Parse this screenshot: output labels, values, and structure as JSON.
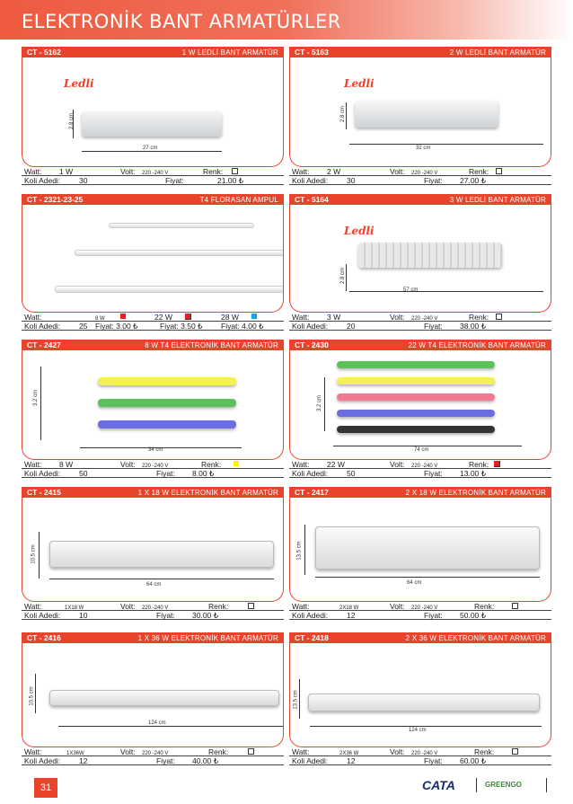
{
  "page_title": "ELEKTRONİK BANT ARMATÜRLER",
  "page_number": "31",
  "brands": [
    "CATA",
    "GREENGO"
  ],
  "labels": {
    "watt": "Watt:",
    "volt": "Volt:",
    "renk": "Renk:",
    "koli": "Koli Adedi:",
    "fiyat": "Fiyat:",
    "ledli": "Ledli"
  },
  "cards": [
    {
      "code": "CT - 5162",
      "spec": "1 W LEDLİ BANT ARMATÜR",
      "watt": "1 W",
      "volt": "220 -240 V",
      "koli": "30",
      "fiyat": "21.00 ₺",
      "dim_w": "27 cm",
      "dim_h": "2.8 cm"
    },
    {
      "code": "CT - 5163",
      "spec": "2 W LEDLİ BANT ARMATÜR",
      "watt": "2 W",
      "volt": "220 -240 V",
      "koli": "30",
      "fiyat": "27.00 ₺",
      "dim_w": "32 cm",
      "dim_h": "2.8 cm"
    },
    {
      "code": "CT - 2321-23-25",
      "spec": "T4 FLORASAN AMPUL",
      "watt1": "8 W",
      "watt2": "22 W",
      "watt3": "28 W",
      "koli": "25",
      "fiyat1": "Fiyat: 3.00 ₺",
      "fiyat2": "Fiyat: 3.50 ₺",
      "fiyat3": "Fiyat: 4.00 ₺"
    },
    {
      "code": "CT - 5164",
      "spec": "3 W LEDLİ BANT ARMATÜR",
      "watt": "3 W",
      "volt": "220 -240 V",
      "koli": "20",
      "fiyat": "38.00 ₺",
      "dim_w": "57 cm",
      "dim_h": "2.8 cm"
    },
    {
      "code": "CT - 2427",
      "spec": "8 W T4  ELEKTRONİK BANT ARMATÜR",
      "watt": "8 W",
      "volt": "220 -240 V",
      "koli": "50",
      "fiyat": "8.00 ₺",
      "dim_w": "34 cm",
      "dim_h": "3.2 cm"
    },
    {
      "code": "CT - 2430",
      "spec": "22 W T4  ELEKTRONİK BANT ARMATÜR",
      "watt": "22 W",
      "volt": "220 -240 V",
      "koli": "50",
      "fiyat": "13.00 ₺",
      "dim_w": "74 cm",
      "dim_h": "3.2 cm"
    },
    {
      "code": "CT - 2415",
      "spec": "1 X 18 W ELEKTRONİK BANT ARMATÜR",
      "watt": "1X18 W",
      "volt": "220 -240 V",
      "koli": "10",
      "fiyat": "30.00 ₺",
      "dim_w": "64 cm",
      "dim_h": "10.5 cm"
    },
    {
      "code": "CT - 2417",
      "spec": "2 X 18 W ELEKTRONİK BANT ARMATÜR",
      "watt": "2X18 W",
      "volt": "220 -240 V",
      "koli": "12",
      "fiyat": "50.00 ₺",
      "dim_w": "64 cm",
      "dim_h": "13.5 cm"
    },
    {
      "code": "CT - 2416",
      "spec": "1 X 36 W ELEKTRONİK BANT ARMATÜR",
      "watt": "1X36W",
      "volt": "220 -240 V",
      "koli": "12",
      "fiyat": "40.00 ₺",
      "dim_w": "124 cm",
      "dim_h": "10.5 cm"
    },
    {
      "code": "CT - 2418",
      "spec": "2 X 36 W ELEKTRONİK BANT ARMATÜR",
      "watt": "2X36 W",
      "volt": "220 -240 V",
      "koli": "12",
      "fiyat": "60.00 ₺",
      "dim_w": "124 cm",
      "dim_h": "13.5 cm"
    }
  ]
}
